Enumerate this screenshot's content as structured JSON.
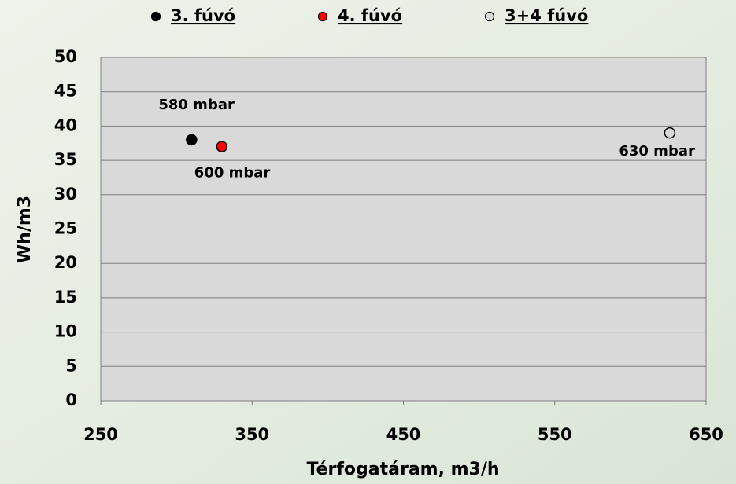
{
  "chart_data": {
    "type": "scatter",
    "xlabel": "Térfogatáram, m3/h",
    "ylabel": "Wh/m3",
    "series": [
      {
        "name": "3. fúvó",
        "color": "#000000",
        "x": [
          310
        ],
        "values": [
          38
        ],
        "annotations": [
          "580 mbar"
        ]
      },
      {
        "name": "4. fúvó",
        "color": "#ff0000",
        "x": [
          330
        ],
        "values": [
          37
        ],
        "annotations": [
          "600 mbar"
        ]
      },
      {
        "name": "3+4 fúvó",
        "color": "#d9d9d9",
        "x": [
          626
        ],
        "values": [
          39
        ],
        "annotations": [
          "630 mbar"
        ]
      }
    ],
    "xlim": [
      250,
      650
    ],
    "xticks": [
      250,
      350,
      450,
      550,
      650
    ],
    "ylim": [
      0,
      50
    ],
    "yticks": [
      0,
      5,
      10,
      15,
      20,
      25,
      30,
      35,
      40,
      45,
      50
    ],
    "grid": true,
    "legend": "top"
  }
}
